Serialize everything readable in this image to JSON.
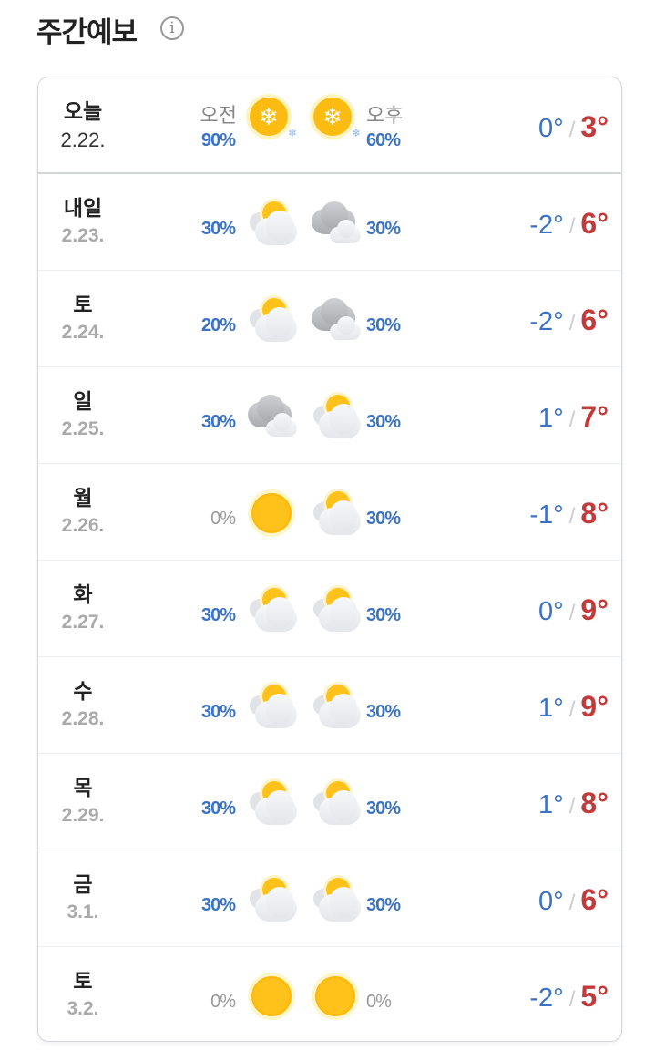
{
  "header": {
    "title": "주간예보",
    "info_icon": "info-icon"
  },
  "labels": {
    "am": "오전",
    "pm": "오후"
  },
  "colors": {
    "low": "#3a72c4",
    "high": "#c33a3a",
    "precip": "#3a72c4"
  },
  "days": [
    {
      "day": "오늘",
      "date": "2.22.",
      "am_pct": "90%",
      "am_icon": "snow-sun",
      "pm_icon": "snow-sun",
      "pm_pct": "60%",
      "low": "0°",
      "high": "3°"
    },
    {
      "day": "내일",
      "date": "2.23.",
      "am_pct": "30%",
      "am_icon": "partly-cloudy",
      "pm_icon": "cloudy",
      "pm_pct": "30%",
      "low": "-2°",
      "high": "6°"
    },
    {
      "day": "토",
      "date": "2.24.",
      "am_pct": "20%",
      "am_icon": "partly-cloudy",
      "pm_icon": "cloudy",
      "pm_pct": "30%",
      "low": "-2°",
      "high": "6°"
    },
    {
      "day": "일",
      "date": "2.25.",
      "am_pct": "30%",
      "am_icon": "cloudy",
      "pm_icon": "partly-cloudy",
      "pm_pct": "30%",
      "low": "1°",
      "high": "7°"
    },
    {
      "day": "월",
      "date": "2.26.",
      "am_pct": "0%",
      "am_icon": "sunny",
      "pm_icon": "partly-cloudy",
      "pm_pct": "30%",
      "low": "-1°",
      "high": "8°"
    },
    {
      "day": "화",
      "date": "2.27.",
      "am_pct": "30%",
      "am_icon": "partly-cloudy",
      "pm_icon": "partly-cloudy",
      "pm_pct": "30%",
      "low": "0°",
      "high": "9°"
    },
    {
      "day": "수",
      "date": "2.28.",
      "am_pct": "30%",
      "am_icon": "partly-cloudy",
      "pm_icon": "partly-cloudy",
      "pm_pct": "30%",
      "low": "1°",
      "high": "9°"
    },
    {
      "day": "목",
      "date": "2.29.",
      "am_pct": "30%",
      "am_icon": "partly-cloudy",
      "pm_icon": "partly-cloudy",
      "pm_pct": "30%",
      "low": "1°",
      "high": "8°"
    },
    {
      "day": "금",
      "date": "3.1.",
      "am_pct": "30%",
      "am_icon": "partly-cloudy",
      "pm_icon": "partly-cloudy",
      "pm_pct": "30%",
      "low": "0°",
      "high": "6°"
    },
    {
      "day": "토",
      "date": "3.2.",
      "am_pct": "0%",
      "am_icon": "sunny",
      "pm_icon": "sunny",
      "pm_pct": "0%",
      "low": "-2°",
      "high": "5°"
    }
  ]
}
